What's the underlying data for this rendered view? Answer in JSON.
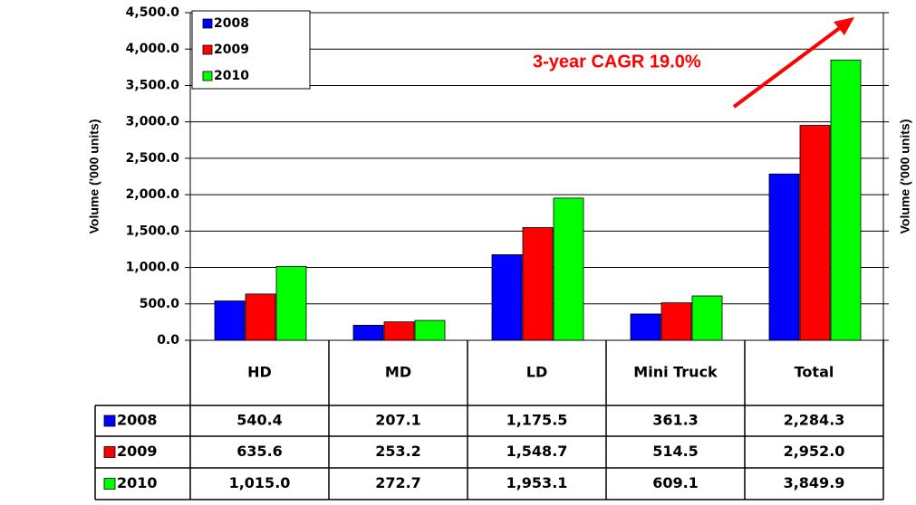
{
  "chart_data": {
    "type": "bar",
    "ylabel": "Volume ('000 units)",
    "annotation": "3-year CAGR 19.0%",
    "categories": [
      "HD",
      "MD",
      "LD",
      "Mini Truck",
      "Total"
    ],
    "series": [
      {
        "name": "2008",
        "color": "#0000ff",
        "values": [
          540.4,
          207.1,
          1175.5,
          361.3,
          2284.3
        ],
        "value_labels": [
          "540.4",
          "207.1",
          "1,175.5",
          "361.3",
          "2,284.3"
        ]
      },
      {
        "name": "2009",
        "color": "#ff0000",
        "values": [
          635.6,
          253.2,
          1548.7,
          514.5,
          2952.0
        ],
        "value_labels": [
          "635.6",
          "253.2",
          "1,548.7",
          "514.5",
          "2,952.0"
        ]
      },
      {
        "name": "2010",
        "color": "#00ff00",
        "values": [
          1015.0,
          272.7,
          1953.1,
          609.1,
          3849.9
        ],
        "value_labels": [
          "1,015.0",
          "272.7",
          "1,953.1",
          "609.1",
          "3,849.9"
        ]
      }
    ],
    "ylim": [
      0,
      4500
    ],
    "yticks": [
      {
        "value": 0,
        "label": "0.0"
      },
      {
        "value": 500,
        "label": "500.0"
      },
      {
        "value": 1000,
        "label": "1,000.0"
      },
      {
        "value": 1500,
        "label": "1,500.0"
      },
      {
        "value": 2000,
        "label": "2,000.0"
      },
      {
        "value": 2500,
        "label": "2,500.0"
      },
      {
        "value": 3000,
        "label": "3,000.0"
      },
      {
        "value": 3500,
        "label": "3,500.0"
      },
      {
        "value": 4000,
        "label": "4,000.0"
      },
      {
        "value": 4500,
        "label": "4,500.0"
      }
    ],
    "grid": true,
    "legend": "upper left"
  }
}
